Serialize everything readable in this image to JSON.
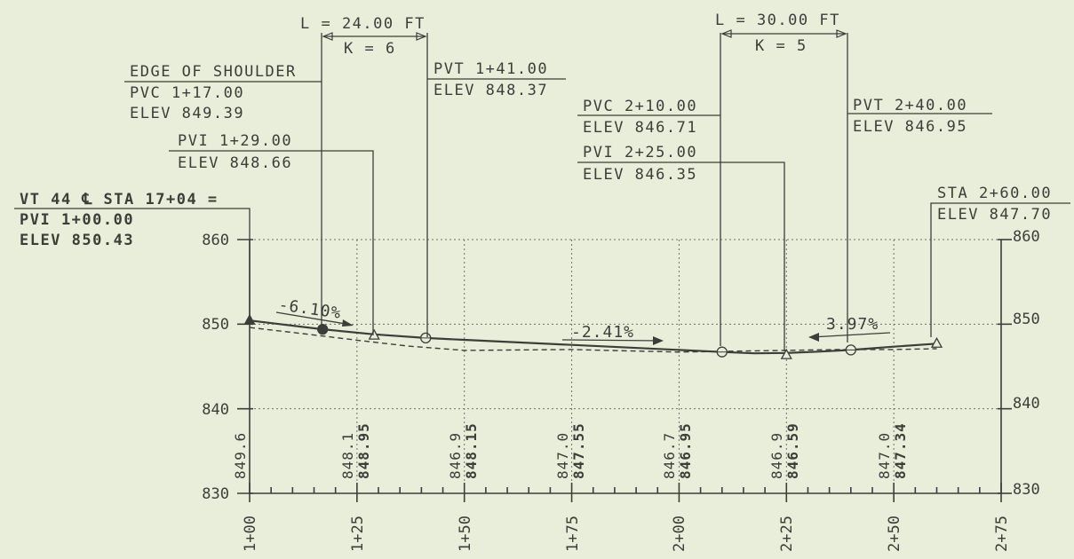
{
  "colors": {
    "paper": "#e8eed9",
    "ink": "#3a3f3a",
    "grid": "#6d726d"
  },
  "curve1": {
    "length": "L = 24.00 FT",
    "k": "K = 6",
    "pvc": {
      "title": "EDGE OF SHOULDER",
      "station": "PVC 1+17.00",
      "elev": "ELEV 849.39"
    },
    "pvi": {
      "station": "PVI 1+29.00",
      "elev": "ELEV  848.66"
    },
    "pvt": {
      "station": "PVT 1+41.00",
      "elev": "ELEV 848.37"
    }
  },
  "curve2": {
    "length": "L = 30.00 FT",
    "k": "K = 5",
    "pvc": {
      "station": "PVC 2+10.00",
      "elev": "ELEV 846.71"
    },
    "pvi": {
      "station": "PVI 2+25.00",
      "elev": "ELEV 846.35"
    },
    "pvt": {
      "station": "PVT 2+40.00",
      "elev": "ELEV 846.95"
    }
  },
  "start_point": {
    "ref": "VT 44 ℄ STA 17+04 =",
    "station": "PVI 1+00.00",
    "elev": "ELEV 850.43"
  },
  "end_point": {
    "station": "STA 2+60.00",
    "elev": "ELEV 847.70"
  },
  "slopes": [
    "-6.10%",
    "-2.41%",
    "3.97%"
  ],
  "chart_data": {
    "type": "line",
    "xlabel": "",
    "ylabel": "",
    "x_domain": [
      100,
      275
    ],
    "ylim": [
      830,
      860
    ],
    "x_ticks": [
      "1+00",
      "1+25",
      "1+50",
      "1+75",
      "2+00",
      "2+25",
      "2+50",
      "2+75"
    ],
    "y_ticks_left": [
      "860",
      "850",
      "840",
      "830"
    ],
    "y_ticks_right": [
      "860",
      "850",
      "840",
      "830"
    ],
    "grid": true,
    "elevation_labels": [
      {
        "x": 100,
        "existing": "849.6",
        "proposed": ""
      },
      {
        "x": 125,
        "existing": "848.1",
        "proposed": "848.95"
      },
      {
        "x": 150,
        "existing": "846.9",
        "proposed": "848.15"
      },
      {
        "x": 175,
        "existing": "847.0",
        "proposed": "847.55"
      },
      {
        "x": 200,
        "existing": "846.7",
        "proposed": "846.95"
      },
      {
        "x": 225,
        "existing": "846.9",
        "proposed": "846.59"
      },
      {
        "x": 250,
        "existing": "847.0",
        "proposed": "847.34"
      }
    ],
    "series": [
      {
        "line": "solid",
        "x": [
          100,
          117,
          129,
          141,
          150,
          175,
          200,
          210,
          217.5,
          225,
          232.5,
          240,
          250,
          260
        ],
        "y": [
          850.43,
          849.39,
          848.8,
          848.37,
          848.15,
          847.55,
          846.95,
          846.71,
          846.55,
          846.59,
          846.75,
          846.95,
          847.34,
          847.7
        ]
      },
      {
        "line": "dashed",
        "x": [
          100,
          112,
          125,
          137,
          150,
          175,
          200,
          212,
          225,
          237,
          250,
          260
        ],
        "y": [
          849.6,
          848.9,
          848.1,
          847.4,
          846.9,
          847.0,
          846.7,
          846.8,
          846.9,
          847.0,
          847.0,
          847.1
        ]
      }
    ],
    "markers": [
      {
        "x": 100,
        "y": 850.43,
        "symbol": "triangle-filled"
      },
      {
        "x": 117,
        "y": 849.39,
        "symbol": "circle-filled"
      },
      {
        "x": 129,
        "y": 848.66,
        "symbol": "triangle"
      },
      {
        "x": 141,
        "y": 848.37,
        "symbol": "circle"
      },
      {
        "x": 210,
        "y": 846.71,
        "symbol": "circle"
      },
      {
        "x": 225,
        "y": 846.35,
        "symbol": "triangle"
      },
      {
        "x": 240,
        "y": 846.95,
        "symbol": "circle"
      },
      {
        "x": 260,
        "y": 847.7,
        "symbol": "triangle"
      }
    ]
  }
}
